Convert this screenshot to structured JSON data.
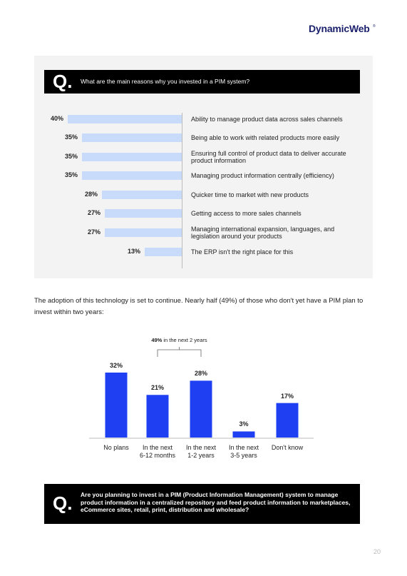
{
  "header": {
    "logo": "DynamicWeb",
    "trademark": "®"
  },
  "question_1": {
    "mark": "Q.",
    "text": "What are the main reasons why you invested in a PIM system?"
  },
  "chart_data": [
    {
      "type": "hbar",
      "categories": [
        "Ability to manage product data across sales channels",
        "Being able to work with related products more easily",
        "Ensuring full control of product data to deliver accurate product information",
        "Managing product information centrally (efficiency)",
        "Quicker time to market with new products",
        "Getting access to more sales channels",
        "Managing international expansion, languages, and legislation around your products",
        "The ERP isn't the right place for this"
      ],
      "values": [
        40,
        35,
        35,
        35,
        28,
        27,
        27,
        13
      ],
      "value_labels": [
        "40%",
        "35%",
        "35%",
        "35%",
        "28%",
        "27%",
        "27%",
        "13%"
      ],
      "color": "#c9dbfa",
      "xlim": [
        0,
        40
      ]
    },
    {
      "type": "bar",
      "categories": [
        "No plans",
        "In the next\n6-12 months",
        "In the next\n1-2 years",
        "In the next\n3-5 years",
        "Don't know"
      ],
      "values": [
        32,
        21,
        28,
        3,
        17
      ],
      "value_labels": [
        "32%",
        "21%",
        "28%",
        "3%",
        "17%"
      ],
      "color": "#1e40f2",
      "ylim": [
        0,
        32
      ],
      "annotation": {
        "value": "49%",
        "text": "in the next 2 years"
      }
    }
  ],
  "paragraph": "The adoption of this technology is set to continue. Nearly half (49%) of those who don't yet have a PIM plan to invest within two years:",
  "question_2": {
    "mark": "Q.",
    "text": "Are you planning to invest in a PIM (Product Information Management) system to manage product information in a centralized repository and feed product information to marketplaces, eCommerce sites, retail, print, distribution and wholesale?"
  },
  "page_number": "20"
}
